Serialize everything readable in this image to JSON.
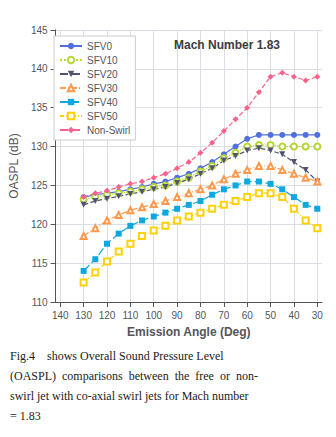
{
  "chart_data": {
    "type": "line",
    "title": "Mach Number 1.83",
    "xlabel": "Emission Angle (Deg)",
    "ylabel": "OASPL (dB)",
    "xlim": [
      142,
      28
    ],
    "ylim": [
      110,
      145
    ],
    "xticks": [
      140,
      130,
      120,
      110,
      100,
      90,
      80,
      70,
      60,
      50,
      40,
      30
    ],
    "yticks": [
      110,
      115,
      120,
      125,
      130,
      135,
      140,
      145
    ],
    "grid": true,
    "legend": "upper left",
    "x": [
      130,
      125,
      120,
      115,
      110,
      105,
      100,
      95,
      90,
      85,
      80,
      75,
      70,
      65,
      60,
      55,
      50,
      45,
      40,
      35,
      30
    ],
    "series": [
      {
        "name": "SFV0",
        "marker": "circle",
        "line_style": "solid",
        "values": [
          123.5,
          123.8,
          124.0,
          124.2,
          124.5,
          124.8,
          125.2,
          125.5,
          126.0,
          126.5,
          127.2,
          128.0,
          129.0,
          130.0,
          131.0,
          131.5,
          131.5,
          131.5,
          131.5,
          131.5,
          131.5
        ]
      },
      {
        "name": "SFV10",
        "marker": "open_circle",
        "line_style": "dotted",
        "values": [
          123.2,
          123.5,
          123.8,
          124.0,
          124.2,
          124.5,
          124.8,
          125.0,
          125.5,
          126.0,
          126.8,
          127.5,
          128.5,
          129.2,
          130.0,
          130.2,
          130.2,
          130.0,
          130.0,
          130.0,
          130.0
        ]
      },
      {
        "name": "SFV20",
        "marker": "triangle_down",
        "line_style": "dashed",
        "values": [
          122.5,
          123.0,
          123.3,
          123.6,
          123.9,
          124.2,
          124.5,
          124.8,
          125.3,
          125.8,
          126.5,
          127.2,
          128.2,
          128.8,
          129.5,
          129.8,
          129.5,
          129.0,
          128.0,
          127.0,
          125.5
        ]
      },
      {
        "name": "SFV30",
        "marker": "open_triangle_up",
        "line_style": "dashdot",
        "values": [
          118.5,
          119.5,
          120.5,
          121.2,
          121.8,
          122.2,
          122.6,
          123.0,
          123.5,
          124.0,
          124.5,
          125.0,
          125.8,
          126.5,
          127.0,
          127.5,
          127.5,
          127.0,
          126.5,
          126.0,
          125.5
        ]
      },
      {
        "name": "SFV40",
        "marker": "square",
        "line_style": "longdash",
        "values": [
          114.0,
          115.5,
          117.5,
          118.8,
          119.8,
          120.5,
          121.0,
          121.5,
          122.0,
          122.5,
          123.0,
          123.8,
          124.5,
          125.0,
          125.5,
          125.5,
          125.2,
          124.5,
          123.5,
          122.5,
          122.0
        ]
      },
      {
        "name": "SFV50",
        "marker": "open_square",
        "line_style": "dashdotdot",
        "values": [
          112.5,
          113.8,
          115.2,
          116.5,
          117.5,
          118.5,
          119.2,
          119.8,
          120.5,
          121.0,
          121.5,
          122.0,
          122.5,
          123.0,
          123.5,
          124.0,
          124.0,
          123.5,
          122.0,
          120.5,
          119.5
        ]
      },
      {
        "name": "Non-Swirl",
        "marker": "diamond",
        "line_style": "dashed",
        "values": [
          123.5,
          124.0,
          124.3,
          124.8,
          125.2,
          125.5,
          126.0,
          126.5,
          127.2,
          128.0,
          129.2,
          130.5,
          132.0,
          133.5,
          135.0,
          137.0,
          139.0,
          139.5,
          139.0,
          138.5,
          139.0
        ]
      }
    ],
    "annotations": [
      "Fig.4    shows Overall Sound Pressure Level",
      "(OASPL)  comparisons  between  the  free  or  non-",
      "swirl jet with co-axial swirl jets for Mach number",
      "= 1.83"
    ]
  }
}
